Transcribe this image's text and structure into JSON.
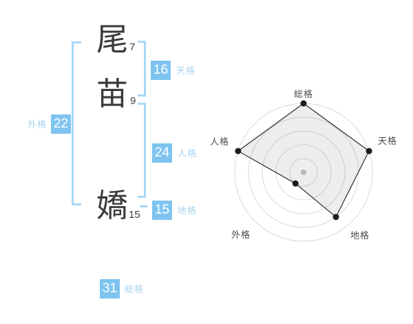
{
  "colors": {
    "badge_blue": "#7ec4ef",
    "label_blue": "#a9d4f1",
    "bracket_blue": "#a8d8f8",
    "ink": "#3a3a3a",
    "ring_gray": "#d9d9d9"
  },
  "name_panel": {
    "characters": [
      {
        "char": "尾",
        "strokes": "7"
      },
      {
        "char": "苗",
        "strokes": "9"
      },
      {
        "char": "嬌",
        "strokes": "15"
      }
    ],
    "gaikaku": {
      "value": "22",
      "label": "外格"
    },
    "tenkaku": {
      "value": "16",
      "label": "天格"
    },
    "jinkaku": {
      "value": "24",
      "label": "人格"
    },
    "chikaku": {
      "value": "15",
      "label": "地格"
    },
    "soukaku": {
      "value": "31",
      "label": "総格"
    }
  },
  "chart_data": {
    "type": "radar",
    "categories": [
      "総格",
      "天格",
      "地格",
      "外格",
      "人格"
    ],
    "values": [
      5,
      5,
      4,
      1,
      5
    ],
    "max": 5,
    "rings": 5,
    "start_angle_deg": 90,
    "direction": "clockwise",
    "grid": "concentric-circles",
    "legend": "none",
    "title": ""
  }
}
